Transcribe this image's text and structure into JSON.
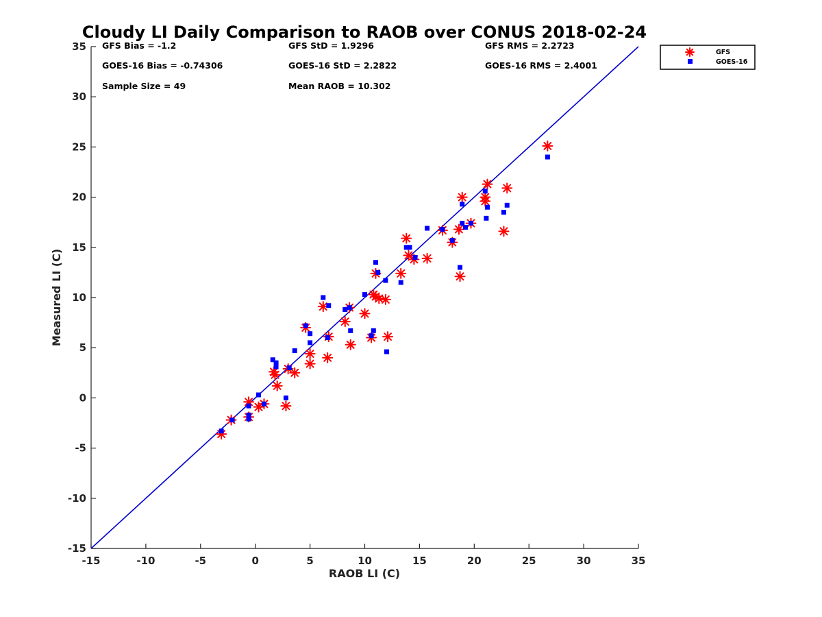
{
  "chart_data": {
    "type": "scatter",
    "title": "Cloudy LI Daily Comparison to RAOB over CONUS 2018-02-24",
    "xlabel": "RAOB LI (C)",
    "ylabel": "Measured LI (C)",
    "xlim": [
      -15,
      35
    ],
    "ylim": [
      -15,
      35
    ],
    "xticks": [
      -15,
      -10,
      -5,
      0,
      5,
      10,
      15,
      20,
      25,
      30,
      35
    ],
    "yticks": [
      -15,
      -10,
      -5,
      0,
      5,
      10,
      15,
      20,
      25,
      30,
      35
    ],
    "xtick_labels": [
      "-15",
      "-10",
      "-5",
      "0",
      "5",
      "10",
      "15",
      "20",
      "25",
      "30",
      "35"
    ],
    "ytick_labels": [
      "-15",
      "-10",
      "-5",
      "0",
      "5",
      "10",
      "15",
      "20",
      "25",
      "30",
      "35"
    ],
    "grid": false,
    "legend_position": "outside-top-right",
    "reference_line": {
      "name": "1:1 line",
      "from": [
        -15,
        -15
      ],
      "to": [
        35,
        35
      ],
      "color": "#0000d0"
    },
    "stats": [
      "GFS Bias = -1.2",
      "GFS StD = 1.9296",
      "GFS RMS = 2.2723",
      "GOES-16 Bias = -0.74306",
      "GOES-16 StD = 2.2822",
      "GOES-16 RMS = 2.4001",
      "Sample Size = 49",
      "Mean RAOB = 10.302"
    ],
    "series": [
      {
        "name": "GFS",
        "marker": "asterisk",
        "color": "#ff0000",
        "points": [
          [
            -3.1,
            -3.6
          ],
          [
            -2.2,
            -2.2
          ],
          [
            -0.6,
            -1.9
          ],
          [
            -0.6,
            -0.4
          ],
          [
            0.3,
            -0.9
          ],
          [
            0.8,
            -0.6
          ],
          [
            1.7,
            2.6
          ],
          [
            1.8,
            2.3
          ],
          [
            2.0,
            1.2
          ],
          [
            2.8,
            -0.8
          ],
          [
            3.0,
            2.9
          ],
          [
            3.6,
            2.5
          ],
          [
            4.6,
            7.0
          ],
          [
            5.0,
            4.4
          ],
          [
            5.0,
            3.4
          ],
          [
            6.2,
            9.1
          ],
          [
            6.6,
            4.0
          ],
          [
            6.7,
            6.1
          ],
          [
            8.2,
            7.6
          ],
          [
            8.6,
            9.0
          ],
          [
            8.7,
            5.3
          ],
          [
            10.0,
            8.4
          ],
          [
            10.6,
            6.0
          ],
          [
            10.8,
            10.3
          ],
          [
            11.0,
            10.1
          ],
          [
            11.0,
            12.4
          ],
          [
            11.3,
            9.9
          ],
          [
            11.9,
            9.8
          ],
          [
            12.1,
            6.1
          ],
          [
            13.3,
            12.4
          ],
          [
            13.8,
            15.9
          ],
          [
            14.0,
            14.2
          ],
          [
            14.5,
            13.8
          ],
          [
            15.7,
            13.9
          ],
          [
            17.1,
            16.7
          ],
          [
            18.0,
            15.5
          ],
          [
            18.6,
            16.8
          ],
          [
            18.7,
            12.1
          ],
          [
            18.9,
            20.0
          ],
          [
            19.7,
            17.4
          ],
          [
            21.0,
            19.6
          ],
          [
            21.0,
            20.0
          ],
          [
            21.2,
            21.3
          ],
          [
            22.7,
            16.6
          ],
          [
            23.0,
            20.9
          ],
          [
            26.7,
            25.1
          ]
        ]
      },
      {
        "name": "GOES-16",
        "marker": "square",
        "color": "#0000ff",
        "points": [
          [
            -3.1,
            -3.3
          ],
          [
            -2.1,
            -2.2
          ],
          [
            -0.6,
            -2.1
          ],
          [
            -0.6,
            -1.7
          ],
          [
            -0.6,
            -0.8
          ],
          [
            0.3,
            0.3
          ],
          [
            0.8,
            -0.6
          ],
          [
            1.6,
            3.8
          ],
          [
            1.9,
            3.5
          ],
          [
            1.9,
            3.1
          ],
          [
            2.8,
            0.0
          ],
          [
            3.1,
            3.0
          ],
          [
            3.6,
            4.7
          ],
          [
            4.6,
            7.2
          ],
          [
            5.0,
            6.4
          ],
          [
            5.0,
            5.5
          ],
          [
            6.2,
            10.0
          ],
          [
            6.7,
            9.2
          ],
          [
            6.6,
            6.0
          ],
          [
            8.2,
            8.8
          ],
          [
            8.6,
            9.0
          ],
          [
            8.7,
            6.7
          ],
          [
            10.0,
            10.3
          ],
          [
            10.6,
            6.2
          ],
          [
            10.8,
            6.7
          ],
          [
            11.0,
            13.5
          ],
          [
            11.2,
            12.5
          ],
          [
            11.9,
            11.7
          ],
          [
            12.0,
            4.6
          ],
          [
            13.3,
            11.5
          ],
          [
            13.8,
            15.0
          ],
          [
            14.1,
            15.0
          ],
          [
            14.6,
            14.0
          ],
          [
            15.7,
            16.9
          ],
          [
            17.1,
            16.8
          ],
          [
            18.0,
            15.7
          ],
          [
            18.7,
            13.0
          ],
          [
            18.9,
            19.3
          ],
          [
            18.9,
            17.4
          ],
          [
            19.2,
            17.0
          ],
          [
            19.7,
            17.4
          ],
          [
            21.0,
            20.6
          ],
          [
            21.1,
            17.9
          ],
          [
            21.2,
            19.0
          ],
          [
            22.7,
            18.5
          ],
          [
            23.0,
            19.2
          ],
          [
            26.7,
            24.0
          ]
        ]
      }
    ]
  }
}
